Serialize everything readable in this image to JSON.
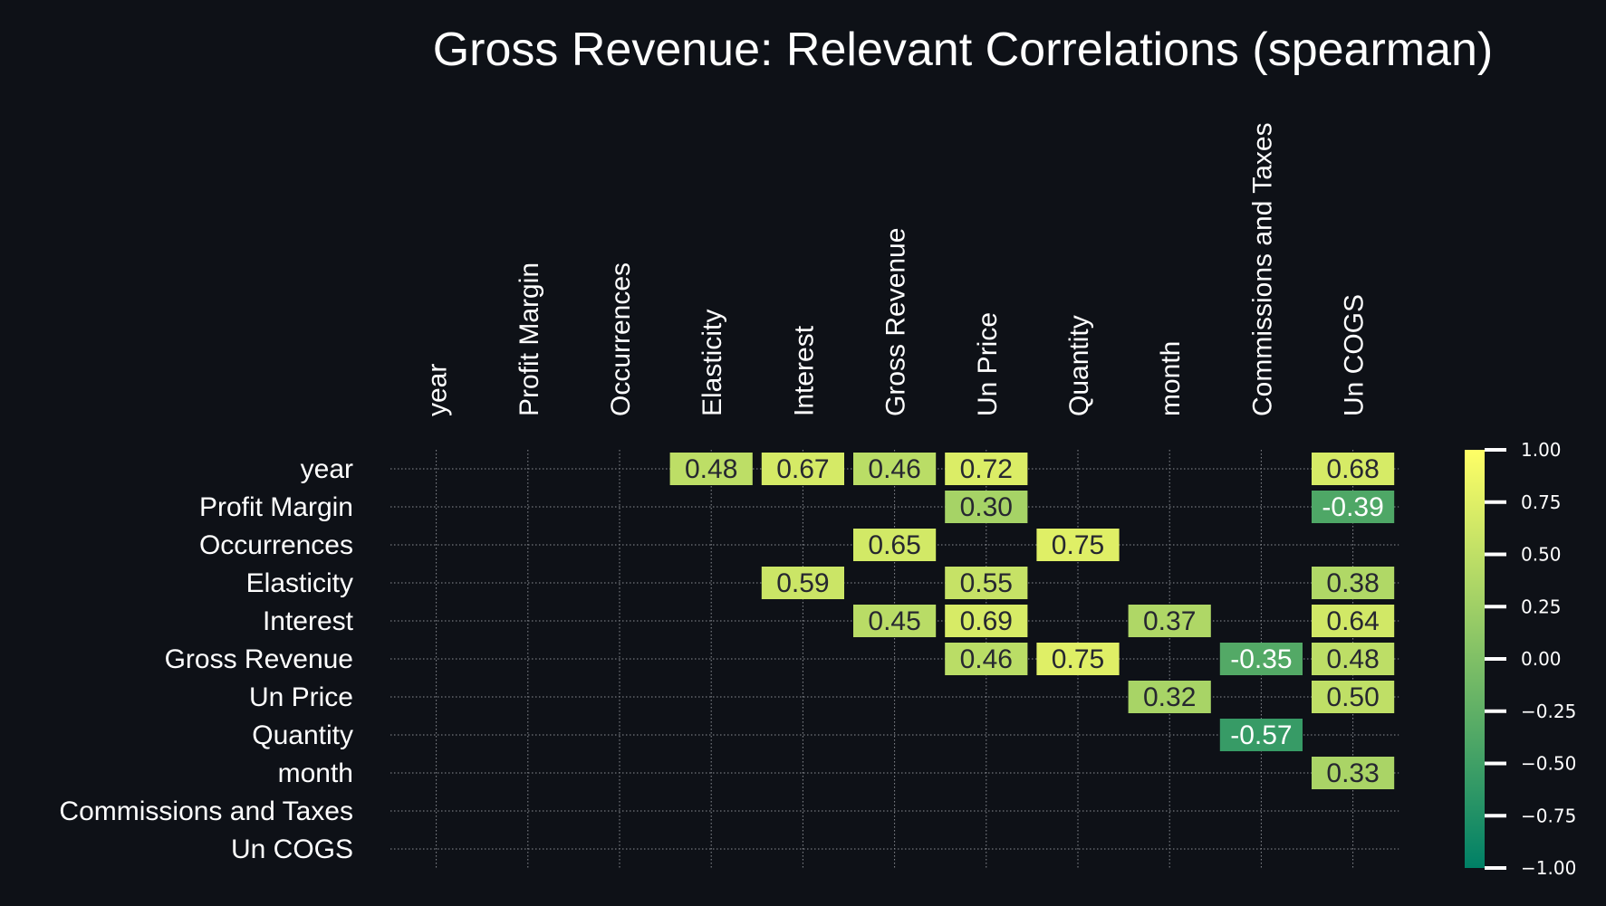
{
  "chart_data": {
    "type": "heatmap",
    "title": "Gross Revenue: Relevant Correlations (spearman)",
    "variables": [
      "year",
      "Profit Margin",
      "Occurrences",
      "Elasticity",
      "Interest",
      "Gross Revenue",
      "Un Price",
      "Quantity",
      "month",
      "Commissions and Taxes",
      "Un COGS"
    ],
    "cells": [
      {
        "row": "year",
        "col": "Elasticity",
        "value": 0.48,
        "label": "0.48"
      },
      {
        "row": "year",
        "col": "Interest",
        "value": 0.67,
        "label": "0.67"
      },
      {
        "row": "year",
        "col": "Gross Revenue",
        "value": 0.46,
        "label": "0.46"
      },
      {
        "row": "year",
        "col": "Un Price",
        "value": 0.72,
        "label": "0.72"
      },
      {
        "row": "year",
        "col": "Un COGS",
        "value": 0.68,
        "label": "0.68"
      },
      {
        "row": "Profit Margin",
        "col": "Un Price",
        "value": 0.3,
        "label": "0.30"
      },
      {
        "row": "Profit Margin",
        "col": "Un COGS",
        "value": -0.39,
        "label": "-0.39"
      },
      {
        "row": "Occurrences",
        "col": "Gross Revenue",
        "value": 0.65,
        "label": "0.65"
      },
      {
        "row": "Occurrences",
        "col": "Quantity",
        "value": 0.75,
        "label": "0.75"
      },
      {
        "row": "Elasticity",
        "col": "Interest",
        "value": 0.59,
        "label": "0.59"
      },
      {
        "row": "Elasticity",
        "col": "Un Price",
        "value": 0.55,
        "label": "0.55"
      },
      {
        "row": "Elasticity",
        "col": "Un COGS",
        "value": 0.38,
        "label": "0.38"
      },
      {
        "row": "Interest",
        "col": "Gross Revenue",
        "value": 0.45,
        "label": "0.45"
      },
      {
        "row": "Interest",
        "col": "Un Price",
        "value": 0.69,
        "label": "0.69"
      },
      {
        "row": "Interest",
        "col": "month",
        "value": 0.37,
        "label": "0.37"
      },
      {
        "row": "Interest",
        "col": "Un COGS",
        "value": 0.64,
        "label": "0.64"
      },
      {
        "row": "Gross Revenue",
        "col": "Un Price",
        "value": 0.46,
        "label": "0.46"
      },
      {
        "row": "Gross Revenue",
        "col": "Quantity",
        "value": 0.75,
        "label": "0.75"
      },
      {
        "row": "Gross Revenue",
        "col": "Commissions and Taxes",
        "value": -0.35,
        "label": "-0.35"
      },
      {
        "row": "Gross Revenue",
        "col": "Un COGS",
        "value": 0.48,
        "label": "0.48"
      },
      {
        "row": "Un Price",
        "col": "month",
        "value": 0.32,
        "label": "0.32"
      },
      {
        "row": "Un Price",
        "col": "Un COGS",
        "value": 0.5,
        "label": "0.50"
      },
      {
        "row": "Quantity",
        "col": "Commissions and Taxes",
        "value": -0.57,
        "label": "-0.57"
      },
      {
        "row": "month",
        "col": "Un COGS",
        "value": 0.33,
        "label": "0.33"
      }
    ],
    "colorbar": {
      "range": [
        -1.0,
        1.0
      ],
      "ticks": [
        1.0,
        0.75,
        0.5,
        0.25,
        0.0,
        -0.25,
        -0.5,
        -0.75,
        -1.0
      ],
      "tick_labels": [
        "1.00",
        "0.75",
        "0.50",
        "0.25",
        "0.00",
        "−0.25",
        "−0.50",
        "−0.75",
        "−1.00"
      ],
      "colormap": "summer",
      "color_low": "#008066",
      "color_high": "#ffff66",
      "placement": "right"
    },
    "grid": true,
    "background": "#0e1117",
    "text_color": "#ffffff",
    "annotation_color": "#262730"
  }
}
